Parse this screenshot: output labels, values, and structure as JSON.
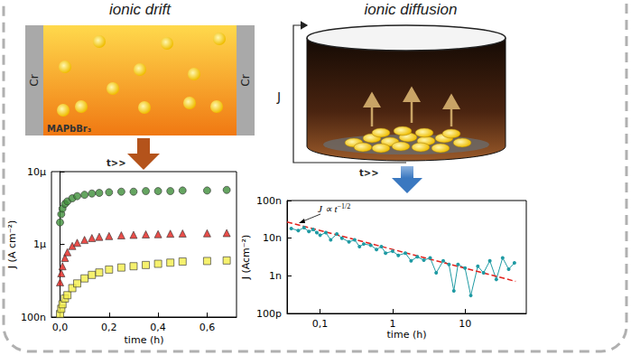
{
  "diagrams": [
    {
      "title": "ionic drift",
      "electrodes": [
        "Cr",
        "Cr"
      ],
      "material": "MAPbBr₃",
      "arrow_label": "t>>"
    },
    {
      "title": "ionic diffusion",
      "current_label": "J",
      "arrow_label": "t>>"
    }
  ],
  "chart_data": [
    {
      "type": "scatter",
      "xlabel": "time (h)",
      "ylabel": "J (A cm⁻²)",
      "x": [
        0,
        0.005,
        0.01,
        0.02,
        0.03,
        0.05,
        0.07,
        0.1,
        0.13,
        0.16,
        0.2,
        0.25,
        0.3,
        0.35,
        0.4,
        0.45,
        0.5,
        0.6,
        0.68
      ],
      "series": [
        {
          "color": "#3f8f3a",
          "marker": "circle",
          "values": [
            2e-06,
            2.6e-06,
            3.1e-06,
            3.6e-06,
            3.9e-06,
            4.3e-06,
            4.6e-06,
            4.8e-06,
            5e-06,
            5.1e-06,
            5.2e-06,
            5.3e-06,
            5.3e-06,
            5.4e-06,
            5.4e-06,
            5.4e-06,
            5.5e-06,
            5.5e-06,
            5.6e-06
          ]
        },
        {
          "color": "#e3211c",
          "marker": "triangle",
          "values": [
            3e-07,
            4e-07,
            5e-07,
            6.5e-07,
            7.8e-07,
            9.5e-07,
            1.05e-06,
            1.15e-06,
            1.22e-06,
            1.27e-06,
            1.3e-06,
            1.33e-06,
            1.35e-06,
            1.37e-06,
            1.38e-06,
            1.4e-06,
            1.41e-06,
            1.42e-06,
            1.43e-06
          ]
        },
        {
          "color": "#f4ee4a",
          "marker": "square",
          "values": [
            1.1e-07,
            1.3e-07,
            1.5e-07,
            1.8e-07,
            2e-07,
            2.5e-07,
            2.9e-07,
            3.4e-07,
            3.8e-07,
            4.1e-07,
            4.5e-07,
            4.8e-07,
            5e-07,
            5.2e-07,
            5.4e-07,
            5.6e-07,
            5.8e-07,
            5.9e-07,
            6e-07
          ]
        }
      ],
      "xlim": [
        -0.035,
        0.72
      ],
      "xticks": [
        {
          "value": 0,
          "label": "0,0"
        },
        {
          "value": 0.2,
          "label": "0,2"
        },
        {
          "value": 0.4,
          "label": "0,4"
        },
        {
          "value": 0.6,
          "label": "0,6"
        }
      ],
      "ylim": [
        1e-07,
        1e-05
      ],
      "yticks": [
        {
          "value": 1e-07,
          "label": "100n"
        },
        {
          "value": 1e-06,
          "label": "1µ"
        },
        {
          "value": 1e-05,
          "label": "10µ"
        }
      ],
      "log": "y",
      "grid": false
    },
    {
      "type": "line",
      "xlabel": "time (h)",
      "ylabel": "J (Acm⁻²)",
      "annotations": [
        {
          "text": "J ∝ t",
          "superscript": "−1/2"
        }
      ],
      "series": [
        {
          "color": "#1f9aa3",
          "marker": "circle",
          "line_style": "solid",
          "x": [
            0.04,
            0.05,
            0.06,
            0.07,
            0.08,
            0.09,
            0.1,
            0.12,
            0.14,
            0.17,
            0.2,
            0.25,
            0.3,
            0.35,
            0.4,
            0.5,
            0.6,
            0.7,
            0.8,
            1,
            1.2,
            1.5,
            1.8,
            2.2,
            2.7,
            3.3,
            4,
            5,
            6,
            7,
            8,
            10,
            12,
            15,
            18,
            22,
            27,
            33,
            40,
            48
          ],
          "values": [
            1.8e-08,
            1.6e-08,
            1.9e-08,
            1.5e-08,
            1.7e-08,
            1.4e-08,
            1.2e-08,
            1.4e-08,
            9e-09,
            1.3e-08,
            1e-08,
            8e-09,
            9e-09,
            6e-09,
            7e-09,
            6.5e-09,
            5e-09,
            6e-09,
            4e-09,
            4.5e-09,
            3.5e-09,
            4e-09,
            2.5e-09,
            3.2e-09,
            2.6e-09,
            3e-09,
            1.2e-09,
            2.5e-09,
            2e-09,
            4e-10,
            2e-09,
            1.6e-09,
            3e-10,
            1.8e-09,
            1.2e-09,
            2.5e-09,
            8e-10,
            3e-09,
            1.5e-09,
            2.2e-09
          ]
        },
        {
          "color": "#e3211c",
          "marker": "none",
          "line_style": "dashed",
          "x": [
            0.035,
            50
          ],
          "values": [
            2.7e-08,
            7.1e-10
          ]
        }
      ],
      "xlim": [
        0.035,
        70
      ],
      "xticks": [
        {
          "value": 0.1,
          "label": "0,1"
        },
        1,
        10
      ],
      "ylim": [
        1e-10,
        1e-07
      ],
      "yticks": [
        {
          "value": 1e-10,
          "label": "100p"
        },
        {
          "value": 1e-09,
          "label": "1n"
        },
        {
          "value": 1e-08,
          "label": "10n"
        },
        {
          "value": 1e-07,
          "label": "100n"
        }
      ],
      "log": true,
      "grid": false
    }
  ]
}
